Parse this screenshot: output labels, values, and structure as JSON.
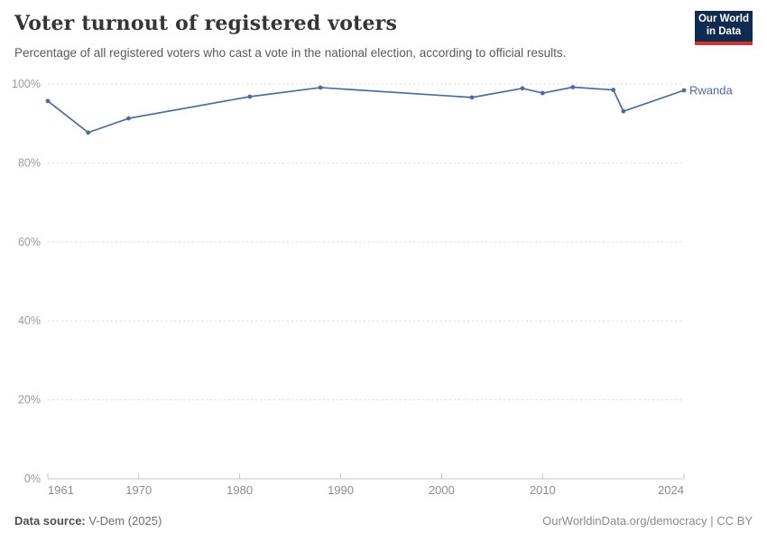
{
  "header": {
    "title": "Voter turnout of registered voters",
    "subtitle": "Percentage of all registered voters who cast a vote in the national election, according to official results.",
    "logo": {
      "line1": "Our World",
      "line2": "in Data",
      "bg_color": "#0f2b4f",
      "accent_color": "#ce352c"
    }
  },
  "chart_data": {
    "type": "line",
    "title": "Voter turnout of registered voters",
    "xlabel": "",
    "ylabel": "",
    "xlim": [
      1961,
      2024
    ],
    "ylim": [
      0,
      100
    ],
    "x_ticks": [
      1961,
      1970,
      1980,
      1990,
      2000,
      2010,
      2024
    ],
    "y_ticks": [
      0,
      20,
      40,
      60,
      80,
      100
    ],
    "y_tick_format": "{}%",
    "grid": "horizontal-dashed",
    "legend_position": "end-of-line-label",
    "series": [
      {
        "name": "Rwanda",
        "color": "#4c6ba3",
        "points": [
          {
            "x": 1961,
            "y": 95.7
          },
          {
            "x": 1965,
            "y": 87.7
          },
          {
            "x": 1969,
            "y": 91.3
          },
          {
            "x": 1981,
            "y": 96.8
          },
          {
            "x": 1988,
            "y": 99.1
          },
          {
            "x": 2003,
            "y": 96.6
          },
          {
            "x": 2008,
            "y": 98.9
          },
          {
            "x": 2010,
            "y": 97.7
          },
          {
            "x": 2013,
            "y": 99.2
          },
          {
            "x": 2017,
            "y": 98.5
          },
          {
            "x": 2018,
            "y": 93.1
          },
          {
            "x": 2024,
            "y": 98.4
          }
        ]
      }
    ]
  },
  "footer": {
    "source_label": "Data source:",
    "source_value": "V-Dem (2025)",
    "link": "OurWorldinData.org/democracy | CC BY"
  }
}
